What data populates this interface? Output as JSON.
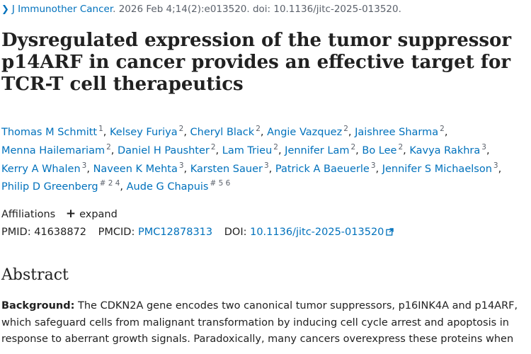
{
  "citation": {
    "journal": "J Immunother Cancer",
    "details": ". 2026 Feb 4;14(2):e013520. doi: 10.1136/jitc-2025-013520."
  },
  "title": "Dysregulated expression of the tumor suppressor p14ARF in cancer provides an effective target for TCR-T cell therapeutics",
  "authors": [
    {
      "name": "Thomas M Schmitt",
      "sup": "1"
    },
    {
      "name": "Kelsey Furiya",
      "sup": "2"
    },
    {
      "name": "Cheryl Black",
      "sup": "2"
    },
    {
      "name": "Angie Vazquez",
      "sup": "2"
    },
    {
      "name": "Jaishree Sharma",
      "sup": "2"
    },
    {
      "name": "Menna Hailemariam",
      "sup": "2"
    },
    {
      "name": "Daniel H Paushter",
      "sup": "2"
    },
    {
      "name": "Lam Trieu",
      "sup": "2"
    },
    {
      "name": "Jennifer Lam",
      "sup": "2"
    },
    {
      "name": "Bo Lee",
      "sup": "2"
    },
    {
      "name": "Kavya Rakhra",
      "sup": "3"
    },
    {
      "name": "Kerry A Whalen",
      "sup": "3"
    },
    {
      "name": "Naveen K Mehta",
      "sup": "3"
    },
    {
      "name": "Karsten Sauer",
      "sup": "3"
    },
    {
      "name": "Patrick A Baeuerle",
      "sup": "3"
    },
    {
      "name": "Jennifer S Michaelson",
      "sup": "3"
    },
    {
      "name": "Philip D Greenberg",
      "sup": "# 2 4"
    },
    {
      "name": "Aude G Chapuis",
      "sup": "# 5 6"
    }
  ],
  "affiliations": {
    "label": "Affiliations",
    "expand_icon": "+",
    "expand_label": "expand"
  },
  "identifiers": {
    "pmid_label": "PMID:",
    "pmid": "41638872",
    "pmcid_label": "PMCID:",
    "pmcid": "PMC12878313",
    "doi_label": "DOI:",
    "doi": "10.1136/jitc-2025-013520",
    "doi_icon": "external-link-icon"
  },
  "abstract": {
    "heading": "Abstract",
    "background_label": "Background:",
    "background_text": " The CDKN2A gene encodes two canonical tumor suppressors, p16INK4A and p14ARF, which safeguard cells from malignant transformation by inducing cell cycle arrest and apoptosis in response to aberrant growth signals. Paradoxically, many cancers overexpress these proteins when"
  },
  "colors": {
    "link": "#0071bc",
    "text": "#212121",
    "muted": "#5b616b"
  }
}
